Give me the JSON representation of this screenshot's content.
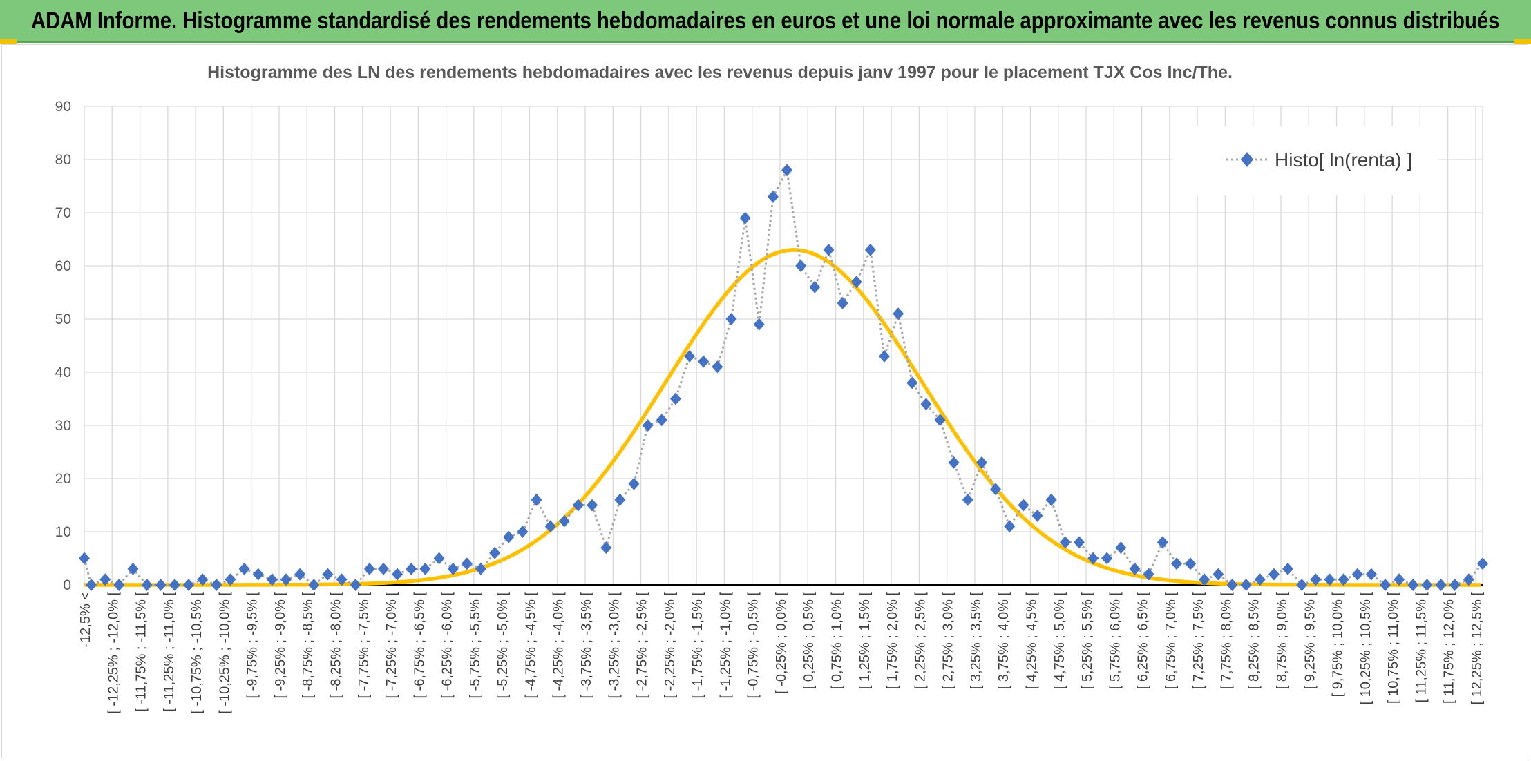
{
  "header": {
    "title": "ADAM Informe. Histogramme standardisé des rendements hebdomadaires en euros et une loi normale approximante avec les revenus connus distribués"
  },
  "colors": {
    "banner": "#7dc87b",
    "series": "#4472c4",
    "connector": "#a6a6a6",
    "normal_curve": "#ffc000",
    "grid": "#d9d9d9"
  },
  "chart_data": {
    "type": "line",
    "title": "Histogramme des LN des rendements hebdomadaires avec les revenus depuis janv 1997 pour le placement TJX Cos Inc/The.",
    "ylim": [
      0,
      90
    ],
    "yticks": [
      "0",
      "10",
      "20",
      "30",
      "40",
      "50",
      "60",
      "70",
      "80",
      "90"
    ],
    "grid": true,
    "legend_position": "top-right",
    "categories": [
      "-12,5% <",
      "[ -12,25% ; -12,0% [",
      "[ -11,75% ; -11,5% [",
      "[ -11,25% ; -11,0% [",
      "[ -10,75% ; -10,5% [",
      "[ -10,25% ; -10,0% [",
      "[ -9,75% ; -9,5% [",
      "[ -9,25% ; -9,0% [",
      "[ -8,75% ; -8,5% [",
      "[ -8,25% ; -8,0% [",
      "[ -7,75% ; -7,5% [",
      "[ -7,25% ; -7,0% [",
      "[ -6,75% ; -6,5% [",
      "[ -6,25% ; -6,0% [",
      "[ -5,75% ; -5,5% [",
      "[ -5,25% ; -5,0% [",
      "[ -4,75% ; -4,5% [",
      "[ -4,25% ; -4,0% [",
      "[ -3,75% ; -3,5% [",
      "[ -3,25% ; -3,0% [",
      "[ -2,75% ; -2,5% [",
      "[ -2,25% ; -2,0% [",
      "[ -1,75% ; -1,5% [",
      "[ -1,25% ; -1,0% [",
      "[ -0,75% ; -0,5% [",
      "[ -0,25% ; 0,0% [",
      "[ 0,25% ; 0,5% [",
      "[ 0,75% ; 1,0% [",
      "[ 1,25% ; 1,5% [",
      "[ 1,75% ; 2,0% [",
      "[ 2,25% ; 2,5% [",
      "[ 2,75% ; 3,0% [",
      "[ 3,25% ; 3,5% [",
      "[ 3,75% ; 4,0% [",
      "[ 4,25% ; 4,5% [",
      "[ 4,75% ; 5,0% [",
      "[ 5,25% ; 5,5% [",
      "[ 5,75% ; 6,0% [",
      "[ 6,25% ; 6,5% [",
      "[ 6,75% ; 7,0% [",
      "[ 7,25% ; 7,5% [",
      "[ 7,75% ; 8,0% [",
      "[ 8,25% ; 8,5% [",
      "[ 8,75% ; 9,0% [",
      "[ 9,25% ; 9,5% [",
      "[ 9,75% ; 10,0% [",
      "[ 10,25% ; 10,5% [",
      "[ 10,75% ; 11,0% [",
      "[ 11,25% ; 11,5% [",
      "[ 11,75% ; 12,0% [",
      "[ 12,25% ; 12,5% ["
    ],
    "series": [
      {
        "name": "Histo[ ln(renta) ]",
        "x": [
          -12.5,
          -12.375,
          -12.125,
          -11.875,
          -11.625,
          -11.375,
          -11.125,
          -10.875,
          -10.625,
          -10.375,
          -10.125,
          -9.875,
          -9.625,
          -9.375,
          -9.125,
          -8.875,
          -8.625,
          -8.375,
          -8.125,
          -7.875,
          -7.625,
          -7.375,
          -7.125,
          -6.875,
          -6.625,
          -6.375,
          -6.125,
          -5.875,
          -5.625,
          -5.375,
          -5.125,
          -4.875,
          -4.625,
          -4.375,
          -4.125,
          -3.875,
          -3.625,
          -3.375,
          -3.125,
          -2.875,
          -2.625,
          -2.375,
          -2.125,
          -1.875,
          -1.625,
          -1.375,
          -1.125,
          -0.875,
          -0.625,
          -0.375,
          -0.125,
          0.125,
          0.375,
          0.625,
          0.875,
          1.125,
          1.375,
          1.625,
          1.875,
          2.125,
          2.375,
          2.625,
          2.875,
          3.125,
          3.375,
          3.625,
          3.875,
          4.125,
          4.375,
          4.625,
          4.875,
          5.125,
          5.375,
          5.625,
          5.875,
          6.125,
          6.375,
          6.625,
          6.875,
          7.125,
          7.375,
          7.625,
          7.875,
          8.125,
          8.375,
          8.625,
          8.875,
          9.125,
          9.375,
          9.625,
          9.875,
          10.125,
          10.375,
          10.625,
          10.875,
          11.125,
          11.375,
          11.625,
          11.875,
          12.125,
          12.375,
          12.625
        ],
        "values": [
          5,
          0,
          1,
          0,
          3,
          0,
          0,
          0,
          0,
          1,
          0,
          1,
          3,
          2,
          1,
          1,
          2,
          0,
          2,
          1,
          0,
          3,
          3,
          2,
          3,
          3,
          5,
          3,
          4,
          3,
          6,
          9,
          10,
          16,
          11,
          12,
          15,
          15,
          7,
          16,
          19,
          30,
          31,
          35,
          43,
          42,
          41,
          50,
          69,
          49,
          73,
          78,
          60,
          56,
          63,
          53,
          57,
          63,
          43,
          51,
          38,
          34,
          31,
          23,
          16,
          23,
          18,
          11,
          15,
          13,
          16,
          8,
          8,
          5,
          5,
          7,
          3,
          2,
          8,
          4,
          4,
          1,
          2,
          0,
          0,
          1,
          2,
          3,
          0,
          1,
          1,
          1,
          2,
          2,
          0,
          1,
          0,
          0,
          0,
          0,
          1,
          4
        ]
      },
      {
        "name": "",
        "type": "normal",
        "mean": 0.25,
        "sd": 2.3,
        "peak": 63
      }
    ]
  }
}
